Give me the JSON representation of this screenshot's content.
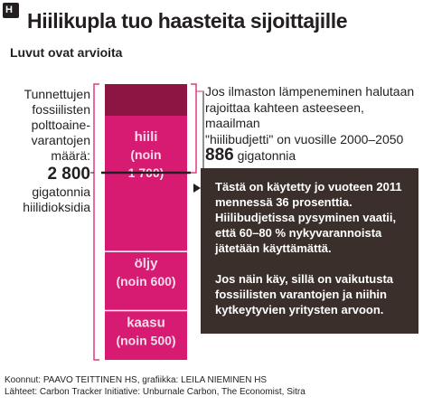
{
  "badge": "H",
  "header": {
    "title": "Hiilikupla tuo haasteita sijoittajille",
    "subtitle": "Luvut ovat arvioita"
  },
  "left_annotation": {
    "lines": [
      "Tunnettujen",
      "fossiilisten",
      "polttoaine-",
      "varantojen",
      "määrä:"
    ],
    "value": "2 800",
    "unit_lines": [
      "gigatonnia",
      "hiilidioksidia"
    ]
  },
  "right_annotation": {
    "lines": [
      "Jos ilmaston lämpeneminen halutaan",
      "rajoittaa kahteen asteeseen, maailman",
      "\"hiilibudjetti\" on vuosille 2000–2050"
    ],
    "value": "886",
    "unit": "gigatonnia"
  },
  "note": {
    "paragraph1": "Tästä on käytetty jo vuoteen 2011 mennessä 36 prosenttia. Hiilibudjetissa pysyminen vaatii, että 60–80 % nykyvarannoista jätetään käyttämättä.",
    "paragraph2": "Jos näin käy, sillä on vaikutusta fossiilisten varantojen ja niihin kytkeytyvien yritysten arvoon."
  },
  "footer": {
    "credits": "Koonnut: PAAVO TEITTINEN HS, grafiikka: LEILA NIEMINEN HS",
    "sources": "Lähteet: Carbon Tracker Initiative: Unburnale Carbon, The Economist, Sitra"
  },
  "colors": {
    "segment": "#d81b72",
    "used_budget": "#8c1544",
    "divider": "#ffffff",
    "bracket": "#e23a86",
    "annotation_line": "#231f20",
    "note_box": "#3b2f2b"
  },
  "chart_data": {
    "type": "bar",
    "orientation": "vertical-stacked",
    "total": 2800,
    "total_label": "2 800",
    "unit": "gigatonnia hiilidioksidia",
    "segments": [
      {
        "name": "kaasu",
        "label": "(noin 500)",
        "value": 500
      },
      {
        "name": "öljy",
        "label": "(noin 600)",
        "value": 600
      },
      {
        "name": "hiili",
        "label": "(noin 1 700)",
        "label_lines": [
          "(noin",
          "1 700)"
        ],
        "value": 1700
      }
    ],
    "budget": {
      "value": 886,
      "label": "886",
      "used_share_by_2011": 0.36
    },
    "used_budget_share_of_segment_stack": 0.115
  }
}
